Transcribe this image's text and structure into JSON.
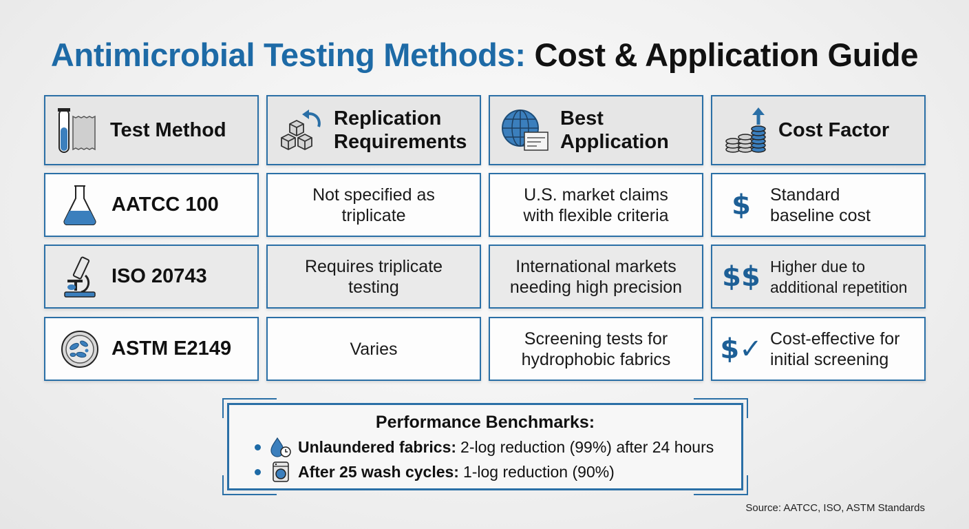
{
  "title": {
    "accent": "Antimicrobial Testing Methods:",
    "rest": "Cost & Application Guide"
  },
  "headers": {
    "method": "Test Method",
    "replication": [
      "Replication",
      "Requirements"
    ],
    "application": [
      "Best",
      "Application"
    ],
    "cost": "Cost Factor"
  },
  "rows": [
    {
      "method": "AATCC 100",
      "method_icon": "flask-icon",
      "replication": [
        "Not specified as",
        "triplicate"
      ],
      "application": [
        "U.S. market claims",
        "with flexible criteria"
      ],
      "cost_symbol": "$",
      "cost": [
        "Standard",
        "baseline cost"
      ]
    },
    {
      "method": "ISO 20743",
      "method_icon": "microscope-icon",
      "replication": [
        "Requires triplicate",
        "testing"
      ],
      "application": [
        "International markets",
        "needing high precision"
      ],
      "cost_symbol": "$$",
      "cost": [
        "Higher due to",
        "additional repetition"
      ]
    },
    {
      "method": "ASTM E2149",
      "method_icon": "petri-dish-icon",
      "replication": [
        "Varies"
      ],
      "application": [
        "Screening tests for",
        "hydrophobic fabrics"
      ],
      "cost_symbol": "$✓",
      "cost": [
        "Cost-effective for",
        "initial screening"
      ]
    }
  ],
  "benchmarks": {
    "title": "Performance Benchmarks:",
    "items": [
      {
        "icon": "water-drop-clock-icon",
        "label": "Unlaundered fabrics:",
        "text": "2-log reduction (99%) after 24 hours"
      },
      {
        "icon": "washing-machine-icon",
        "label": "After 25 wash cycles:",
        "text": "1-log reduction (90%)"
      }
    ]
  },
  "source": "Source: AATCC, ISO, ASTM Standards",
  "colors": {
    "accent": "#1d6aa6",
    "border": "#2a6fa6",
    "header_bg": "#e6e6e6"
  }
}
